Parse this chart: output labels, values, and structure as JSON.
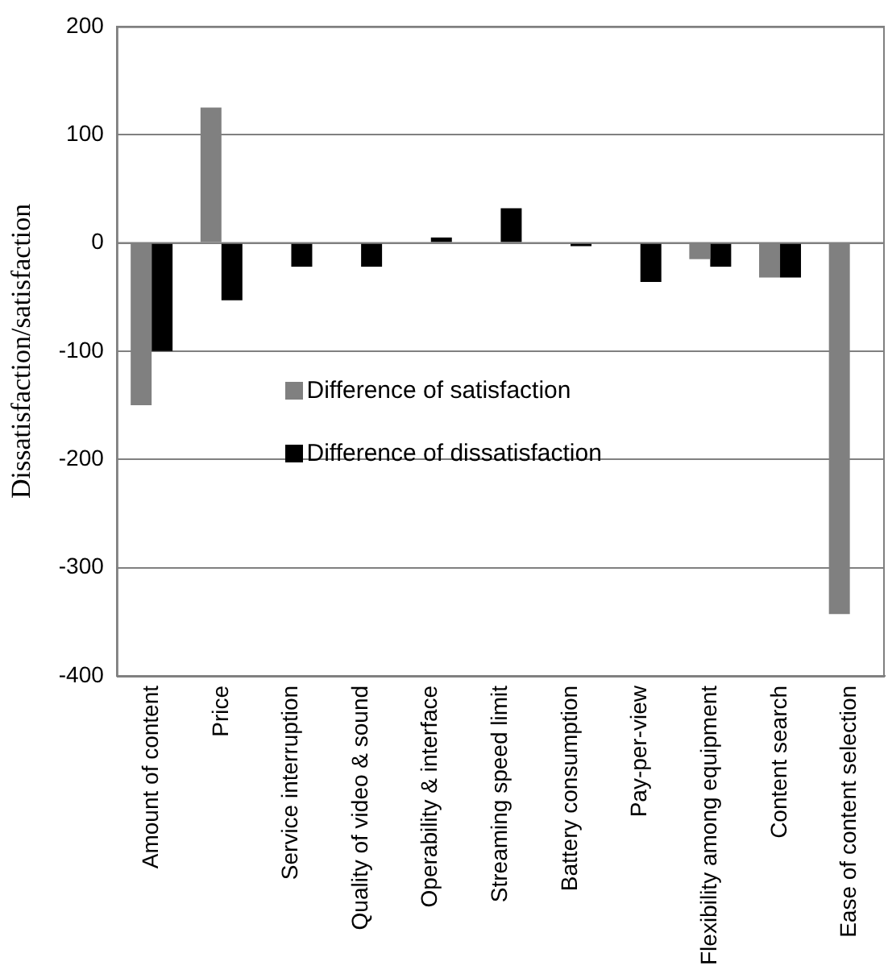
{
  "chart_data": {
    "type": "bar",
    "ylabel": "Dissatisfaction/satisfaction",
    "categories": [
      "Amount of content",
      "Price",
      "Service interruption",
      "Quality of video & sound",
      "Operability & interface",
      "Streaming speed limit",
      "Battery consumption",
      "Pay-per-view",
      "Flexibility among equipment",
      "Content search",
      "Ease of content selection"
    ],
    "series": [
      {
        "name": "Difference of satisfaction",
        "color": "#808080",
        "values": [
          -150,
          125,
          0,
          0,
          0,
          0,
          0,
          0,
          -15,
          -32,
          -343
        ]
      },
      {
        "name": "Difference of dissatisfaction",
        "color": "#000000",
        "values": [
          -100,
          -53,
          -22,
          -22,
          5,
          32,
          -3,
          -36,
          -22,
          -32,
          0
        ]
      }
    ],
    "ylim": [
      -400,
      200
    ],
    "yticks": [
      -400,
      -300,
      -200,
      -100,
      0,
      100,
      200
    ],
    "grid": "y",
    "legend": "center"
  }
}
